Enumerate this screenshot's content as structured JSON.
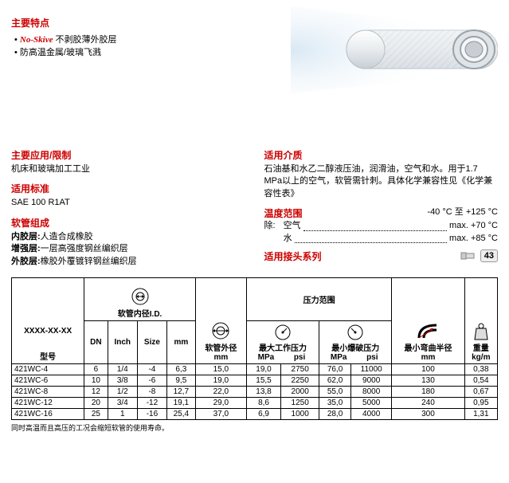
{
  "features": {
    "heading": "主要特点",
    "items": [
      {
        "prefix": "No-Skive",
        "text": " 不剥胶薄外胶层",
        "styled": true
      },
      {
        "prefix": "",
        "text": "防高温金属/玻璃飞溅",
        "styled": false
      }
    ]
  },
  "application": {
    "heading": "主要应用/限制",
    "text": "机床和玻璃加工工业"
  },
  "standard": {
    "heading": "适用标准",
    "text": "SAE 100 R1AT"
  },
  "construction": {
    "heading": "软管组成",
    "inner_label": "内胶层:",
    "inner_text": "人造合成橡胶",
    "reinf_label": "增强层:",
    "reinf_text": "一层高强度钢丝编织层",
    "outer_label": "外胶层:",
    "outer_text": "橡胶外覆镀锌钢丝编织层"
  },
  "media": {
    "heading": "适用介质",
    "text": "石油基和水乙二醇液压油，润滑油，空气和水。用于1.7 MPa以上的空气，软管需针刺。具体化学兼容性见《化学兼容性表》"
  },
  "temperature": {
    "heading": "温度范围",
    "range": "-40 °C 至 +125 °C",
    "except_label": "除:",
    "rows": [
      {
        "name": "空气",
        "value": "max. +70 °C"
      },
      {
        "name": "水",
        "value": "max. +85 °C"
      }
    ]
  },
  "fitting": {
    "heading": "适用接头系列",
    "badge": "43"
  },
  "table": {
    "part_placeholder": "XXXX-XX-XX",
    "part_label": "型号",
    "id_group": "软管内径I.D.",
    "od_group": "软管外径",
    "pressure_group": "压力范围",
    "mwp_label": "最大工作压力",
    "mbp_label": "最小爆破压力",
    "bend_label": "最小弯曲半径",
    "weight_label": "重量",
    "units": {
      "dn": "DN",
      "inch": "Inch",
      "size": "Size",
      "mm": "mm",
      "mpa": "MPa",
      "psi": "psi",
      "kgm": "kg/m"
    },
    "rows": [
      {
        "part": "421WC-4",
        "dn": "6",
        "inch": "1/4",
        "size": "-4",
        "id_mm": "6,3",
        "od_mm": "15,0",
        "mwp_mpa": "19,0",
        "mwp_psi": "2750",
        "mbp_mpa": "76,0",
        "mbp_psi": "11000",
        "bend": "100",
        "wt": "0,38"
      },
      {
        "part": "421WC-6",
        "dn": "10",
        "inch": "3/8",
        "size": "-6",
        "id_mm": "9,5",
        "od_mm": "19,0",
        "mwp_mpa": "15,5",
        "mwp_psi": "2250",
        "mbp_mpa": "62,0",
        "mbp_psi": "9000",
        "bend": "130",
        "wt": "0,54"
      },
      {
        "part": "421WC-8",
        "dn": "12",
        "inch": "1/2",
        "size": "-8",
        "id_mm": "12,7",
        "od_mm": "22,0",
        "mwp_mpa": "13,8",
        "mwp_psi": "2000",
        "mbp_mpa": "55,0",
        "mbp_psi": "8000",
        "bend": "180",
        "wt": "0,67"
      },
      {
        "part": "421WC-12",
        "dn": "20",
        "inch": "3/4",
        "size": "-12",
        "id_mm": "19,1",
        "od_mm": "29,0",
        "mwp_mpa": "8,6",
        "mwp_psi": "1250",
        "mbp_mpa": "35,0",
        "mbp_psi": "5000",
        "bend": "240",
        "wt": "0,95"
      },
      {
        "part": "421WC-16",
        "dn": "25",
        "inch": "1",
        "size": "-16",
        "id_mm": "25,4",
        "od_mm": "37,0",
        "mwp_mpa": "6,9",
        "mwp_psi": "1000",
        "mbp_mpa": "28,0",
        "mbp_psi": "4000",
        "bend": "300",
        "wt": "1,31"
      }
    ]
  },
  "footnote": "同时高温而且高压的工况会缩短软管的使用寿命。",
  "colors": {
    "red": "#c00",
    "hose_body": "#f5f5f5",
    "hose_shadow": "#cfd6dc",
    "hose_ring": "#9aa2a8"
  }
}
